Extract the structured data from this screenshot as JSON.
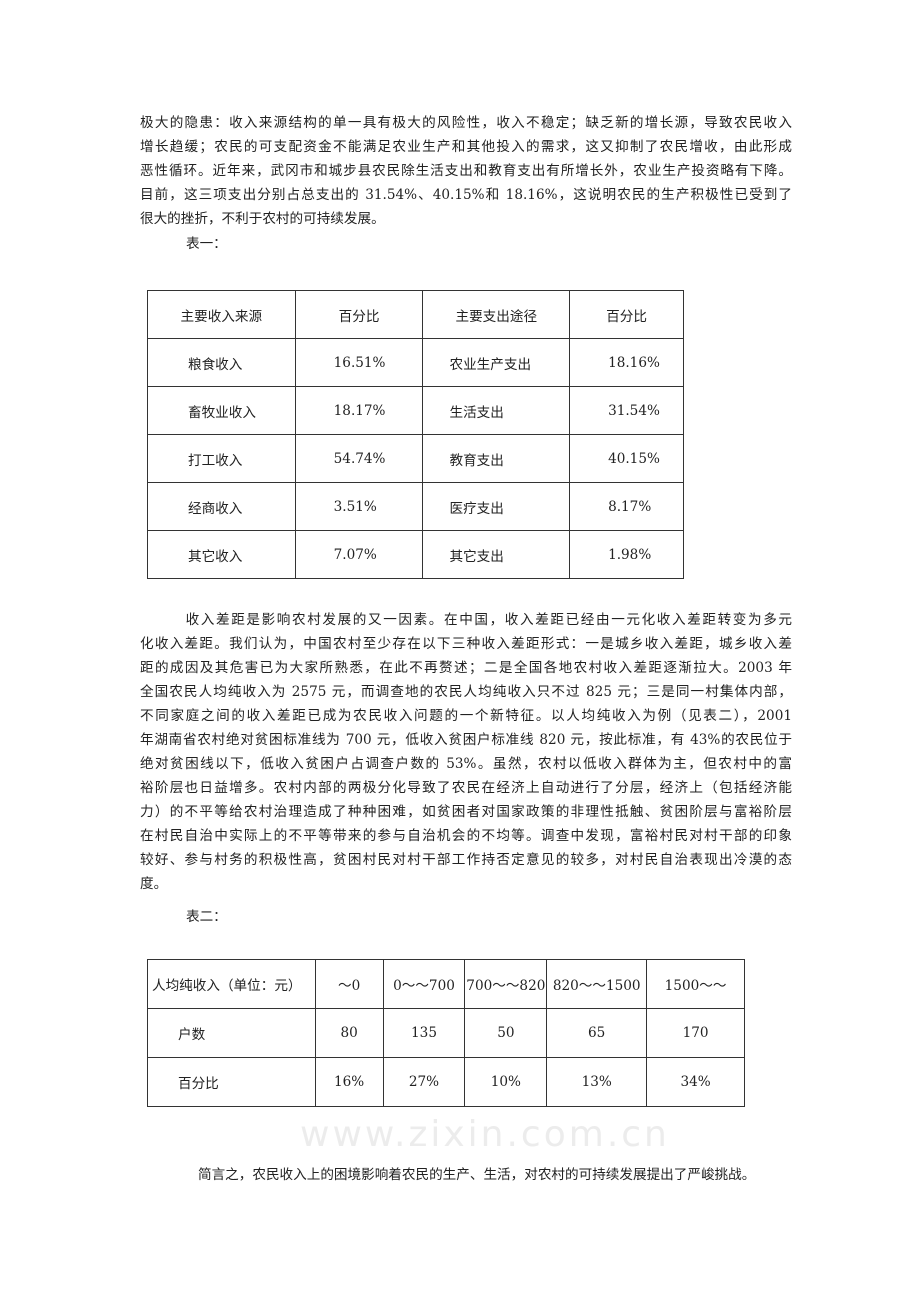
{
  "watermark": "www.zixin.com.cn",
  "paragraph1": [
    "极大的隐患：收入来源结构的单一具有极大的风险性，收入不稳定；缺乏新的增长源，导致农民收入",
    "增长趋缓；农民的可支配资金不能满足农业生产和其他投入的需求，这又抑制了农民增收，由此形成",
    "恶性循环。近年来，武冈市和城步县农民除生活支出和教育支出有所增长外，农业生产投资略有下降。",
    "目前，这三项支出分别占总支出的 31.54%、40.15%和 18.16%，这说明农民的生产积极性已受到了",
    "很大的挫折，不利于农村的可持续发展。"
  ],
  "table1_label": "表一：",
  "table1": {
    "headers": [
      "主要收入来源",
      "百分比",
      "主要支出途径",
      "百分比"
    ],
    "rows": [
      [
        "粮食收入",
        "16.51%",
        "农业生产支出",
        "18.16%"
      ],
      [
        "畜牧业收入",
        "18.17%",
        "生活支出",
        "31.54%"
      ],
      [
        "打工收入",
        "54.74%",
        "教育支出",
        "40.15%"
      ],
      [
        "经商收入",
        "3.51%",
        "医疗支出",
        "8.17%"
      ],
      [
        "其它收入",
        "7.07%",
        "其它支出",
        "1.98%"
      ]
    ]
  },
  "paragraph2": [
    "　　　收入差距是影响农村发展的又一因素。在中国，收入差距已经由一元化收入差距转变为多元",
    "化收入差距。我们认为，中国农村至少存在以下三种收入差距形式：一是城乡收入差距，城乡收入差",
    "距的成因及其危害已为大家所熟悉，在此不再赘述；二是全国各地农村收入差距逐渐拉大。2003 年",
    "全国农民人均纯收入为 2575 元，而调查地的农民人均纯收入只不过 825 元；三是同一村集体内部，",
    "不同家庭之间的收入差距已成为农民收入问题的一个新特征。以人均纯收入为例（见表二），2001",
    "年湖南省农村绝对贫困标准线为 700 元，低收入贫困户标准线 820 元，按此标准，有 43%的农民位于",
    "绝对贫困线以下，低收入贫困户占调查户数的 53%。虽然，农村以低收入群体为主，但农村中的富",
    "裕阶层也日益增多。农村内部的两极分化导致了农民在经济上自动进行了分层，经济上（包括经济能",
    "力）的不平等给农村治理造成了种种困难，如贫困者对国家政策的非理性抵触、贫困阶层与富裕阶层",
    "在村民自治中实际上的不平等带来的参与自治机会的不均等。调查中发现，富裕村民对村干部的印象",
    "较好、参与村务的积极性高，贫困村民对村干部工作持否定意见的较多，对村民自治表现出冷漠的态",
    "度。"
  ],
  "table2_label": "表二：",
  "table2": {
    "headers": [
      "人均纯收入（单位：元）",
      "～0",
      "0～～700",
      "700～～820",
      "820～～1500",
      "1500～～"
    ],
    "rows": [
      [
        "户数",
        "80",
        "135",
        "50",
        "65",
        "170"
      ],
      [
        "百分比",
        "16%",
        "27%",
        "10%",
        "13%",
        "34%"
      ]
    ]
  },
  "paragraph3": "简言之，农民收入上的困境影响着农民的生产、生活，对农村的可持续发展提出了严峻挑战。"
}
